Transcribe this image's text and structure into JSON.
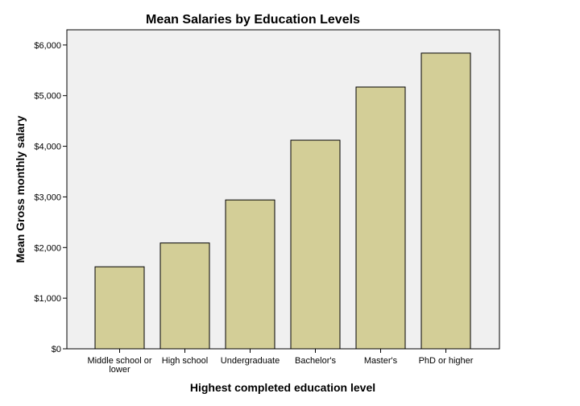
{
  "chart_data": {
    "type": "bar",
    "title": "Mean Salaries by Education Levels",
    "xlabel": "Highest completed education level",
    "ylabel": "Mean Gross monthly salary",
    "categories": [
      [
        "Middle school or",
        "lower"
      ],
      [
        "High school"
      ],
      [
        "Undergraduate"
      ],
      [
        "Bachelor's"
      ],
      [
        "Master's"
      ],
      [
        "PhD or higher"
      ]
    ],
    "values": [
      1620,
      2090,
      2940,
      4120,
      5170,
      5840
    ],
    "ylim": [
      0,
      6300
    ],
    "yticks": [
      0,
      1000,
      2000,
      3000,
      4000,
      5000,
      6000
    ],
    "ytick_labels": [
      "$0",
      "$1,000",
      "$2,000",
      "$3,000",
      "$4,000",
      "$5,000",
      "$6,000"
    ],
    "colors": {
      "bar": "#d3ce97",
      "bar_stroke": "#000000",
      "plot_bg": "#f0f0f0",
      "frame": "#000000"
    }
  }
}
